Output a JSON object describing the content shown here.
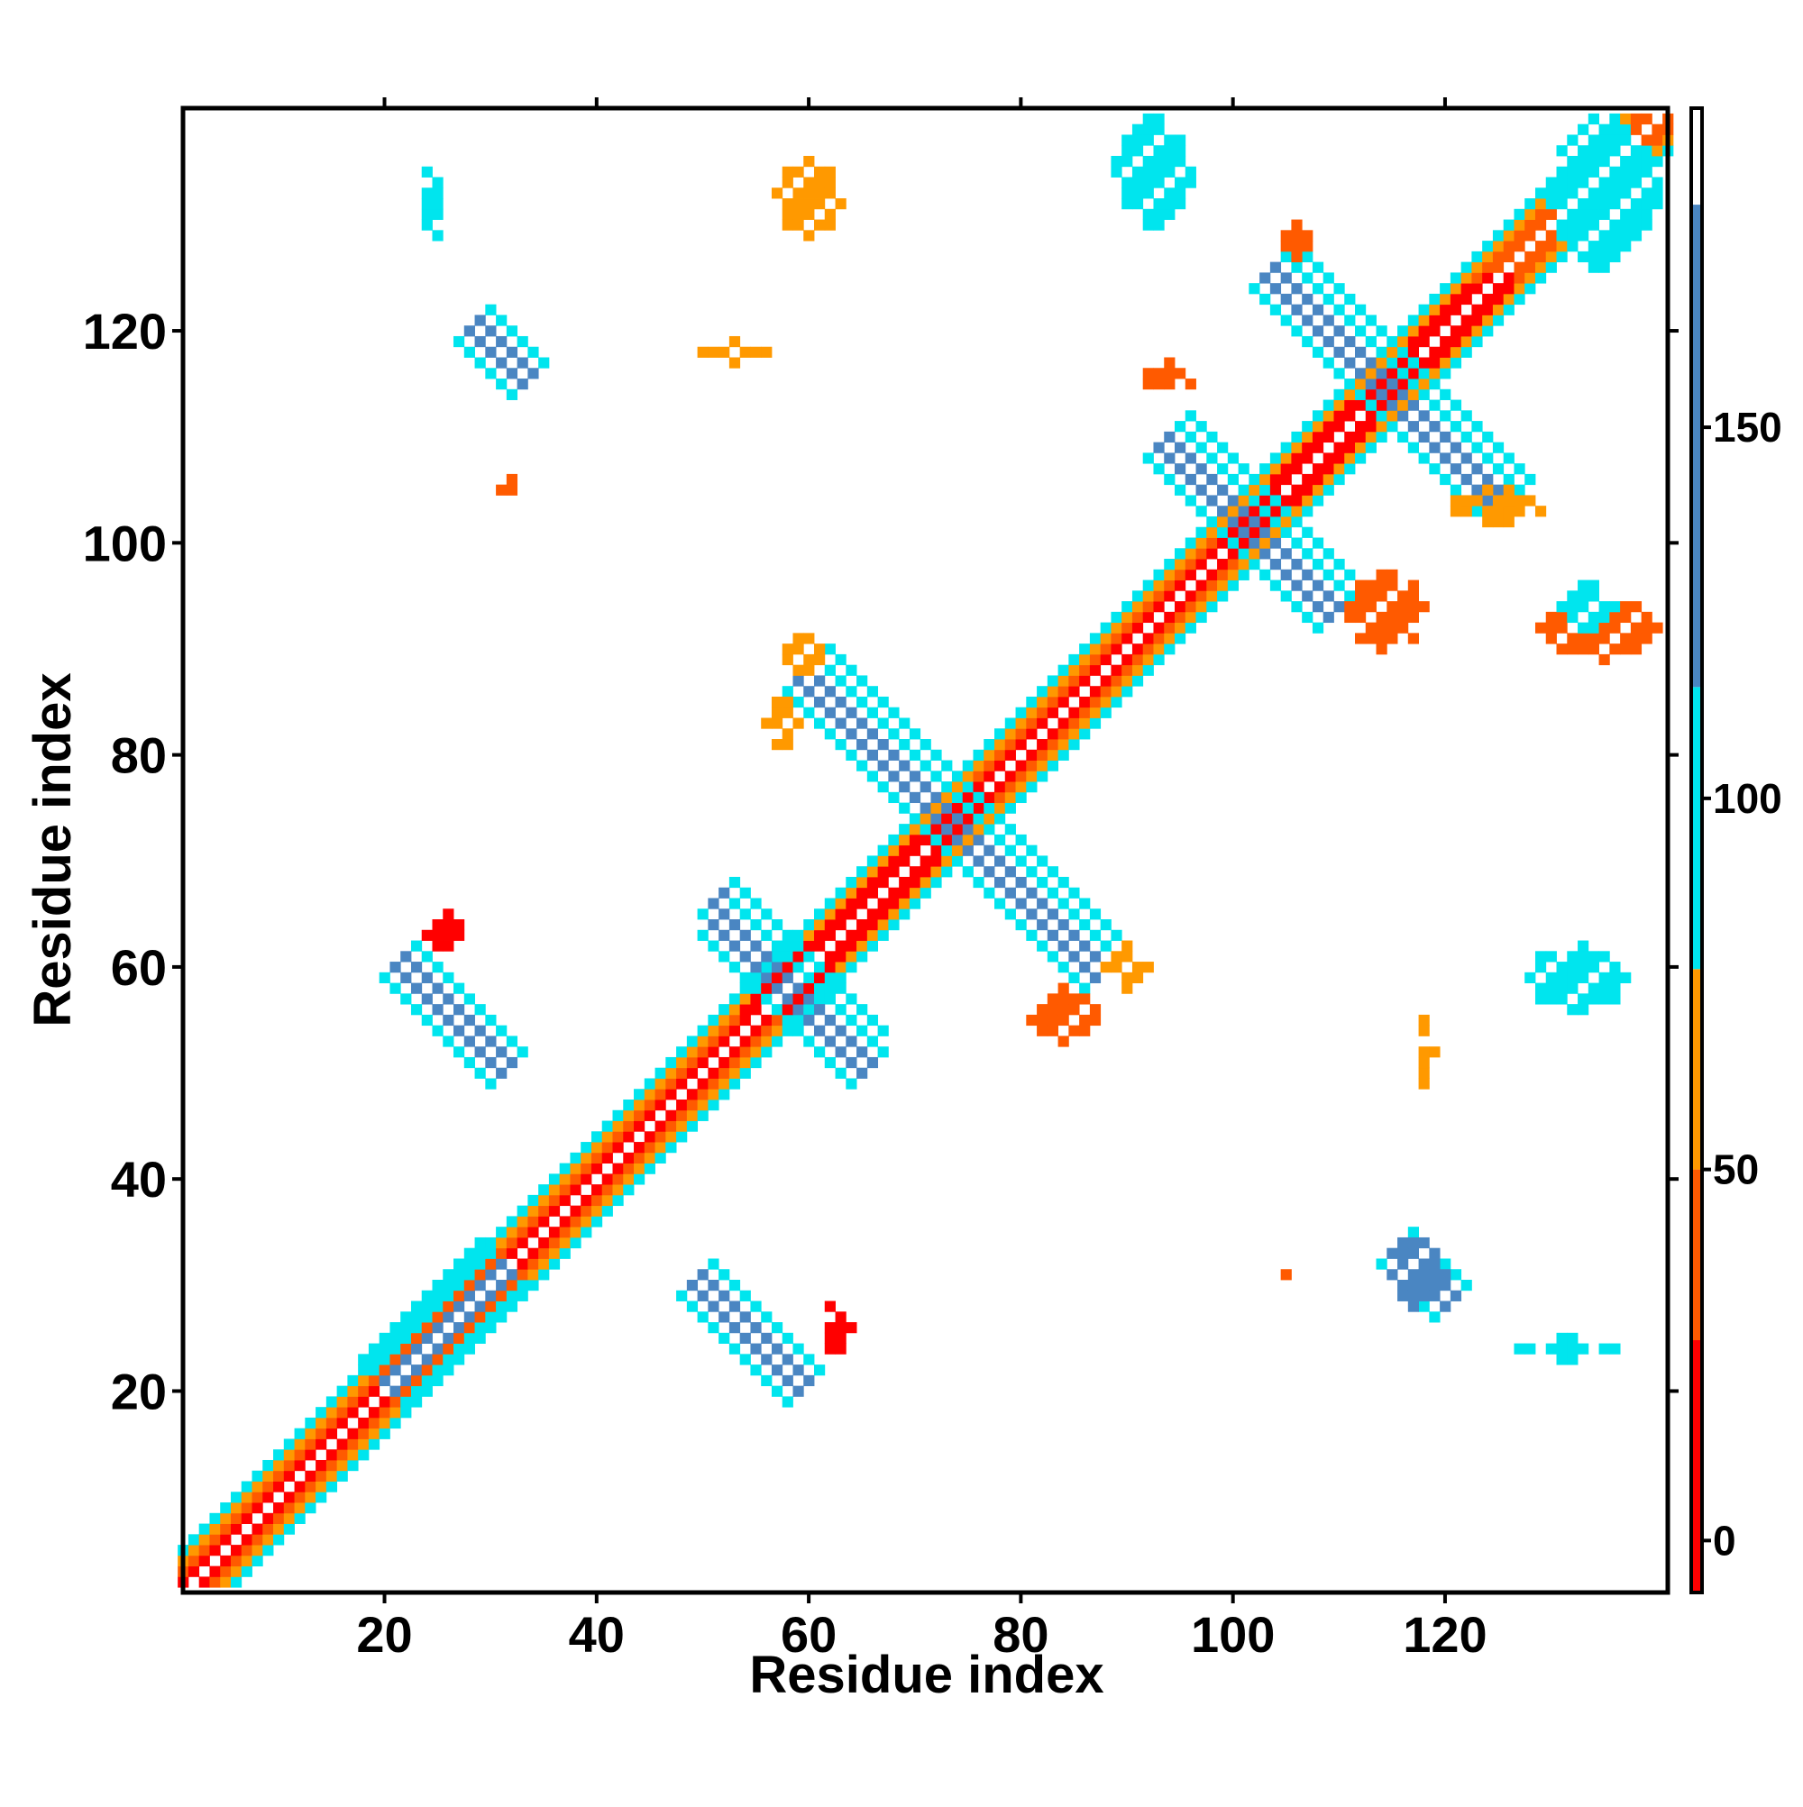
{
  "chart_data": {
    "type": "heatmap",
    "title": "",
    "xlabel": "Residue index",
    "ylabel": "Residue index",
    "xlim": [
      1,
      141
    ],
    "ylim": [
      1,
      141
    ],
    "x_ticks": [
      20,
      40,
      60,
      80,
      100,
      120
    ],
    "y_ticks": [
      20,
      40,
      60,
      80,
      100,
      120
    ],
    "colorbar": {
      "ticks": [
        0,
        50,
        100,
        150
      ],
      "range": [
        -7,
        193
      ],
      "bands": [
        {
          "from": -7,
          "to": 27,
          "color": "#ff0000"
        },
        {
          "from": 27,
          "to": 50,
          "color": "#ff5a00"
        },
        {
          "from": 50,
          "to": 77,
          "color": "#ff9900"
        },
        {
          "from": 77,
          "to": 115,
          "color": "#00e5ee"
        },
        {
          "from": 115,
          "to": 180,
          "color": "#4a86c2"
        },
        {
          "from": 180,
          "to": 193,
          "color": "#ffffff"
        }
      ]
    },
    "grid": false,
    "legend": "colorbar right",
    "colors": {
      "red": "#ff0000",
      "red_orange": "#ff5a00",
      "orange": "#ff9900",
      "cyan": "#00e5ee",
      "blue": "#4a86c2"
    },
    "features": [
      {
        "kind": "diagonal_band",
        "from": [
          2,
          2
        ],
        "to": [
          140,
          140
        ],
        "value": 40
      },
      {
        "kind": "strand_pair",
        "from": [
          20,
          21
        ],
        "to": [
          31,
          32
        ],
        "value": 150
      },
      {
        "kind": "strand_pair",
        "from": [
          21,
          20
        ],
        "to": [
          32,
          31
        ],
        "value": 150
      },
      {
        "kind": "strand_pair",
        "from": [
          21,
          60
        ],
        "to": [
          31,
          50
        ],
        "value": 150
      },
      {
        "kind": "strand_pair",
        "from": [
          60,
          21
        ],
        "to": [
          50,
          31
        ],
        "value": 150
      },
      {
        "kind": "strand_pair",
        "from": [
          51,
          66
        ],
        "to": [
          65,
          52
        ],
        "value": 150
      },
      {
        "kind": "strand_pair",
        "from": [
          66,
          51
        ],
        "to": [
          52,
          65
        ],
        "value": 150
      },
      {
        "kind": "strand_pair",
        "from": [
          60,
          88
        ],
        "to": [
          88,
          60
        ],
        "value": 150
      },
      {
        "kind": "strand_pair",
        "from": [
          88,
          60
        ],
        "to": [
          60,
          88
        ],
        "value": 150
      },
      {
        "kind": "strand_pair",
        "from": [
          94,
          110
        ],
        "to": [
          110,
          94
        ],
        "value": 150
      },
      {
        "kind": "strand_pair",
        "from": [
          110,
          94
        ],
        "to": [
          94,
          110
        ],
        "value": 150
      },
      {
        "kind": "strand_pair",
        "from": [
          104,
          126
        ],
        "to": [
          126,
          104
        ],
        "value": 150
      },
      {
        "kind": "strand_pair",
        "from": [
          126,
          104
        ],
        "to": [
          104,
          126
        ],
        "value": 150
      },
      {
        "kind": "strand_pair",
        "from": [
          28,
          120
        ],
        "to": [
          33,
          115
        ],
        "value": 150
      },
      {
        "kind": "strand_pair",
        "from": [
          115,
          33
        ],
        "to": [
          120,
          28
        ],
        "value": 150
      },
      {
        "kind": "cluster",
        "from": [
          130,
          126
        ],
        "to": [
          140,
          140
        ],
        "value": 110
      },
      {
        "kind": "cluster",
        "from": [
          24,
          128
        ],
        "to": [
          25,
          136
        ],
        "value": 100
      },
      {
        "kind": "cluster",
        "from": [
          57,
          129
        ],
        "to": [
          63,
          136
        ],
        "value": 70
      },
      {
        "kind": "cluster",
        "from": [
          89,
          130
        ],
        "to": [
          96,
          140
        ],
        "value": 80
      },
      {
        "kind": "cluster",
        "from": [
          105,
          126
        ],
        "to": [
          107,
          131
        ],
        "value": 40
      },
      {
        "kind": "cluster",
        "from": [
          50,
          117
        ],
        "to": [
          56,
          119
        ],
        "value": 60
      },
      {
        "kind": "cluster",
        "from": [
          91,
          114
        ],
        "to": [
          97,
          117
        ],
        "value": 40
      },
      {
        "kind": "cluster",
        "from": [
          31,
          105
        ],
        "to": [
          32,
          106
        ],
        "value": 40
      },
      {
        "kind": "cluster",
        "from": [
          56,
          80
        ],
        "to": [
          59,
          86
        ],
        "value": 50
      },
      {
        "kind": "cluster",
        "from": [
          57,
          88
        ],
        "to": [
          62,
          91
        ],
        "value": 50
      },
      {
        "kind": "cluster",
        "from": [
          24,
          61
        ],
        "to": [
          28,
          65
        ],
        "value": 20
      },
      {
        "kind": "cluster",
        "from": [
          81,
          53
        ],
        "to": [
          87,
          58
        ],
        "value": 30
      },
      {
        "kind": "cluster",
        "from": [
          88,
          58
        ],
        "to": [
          92,
          62
        ],
        "value": 60
      },
      {
        "kind": "cluster",
        "from": [
          61,
          23
        ],
        "to": [
          64,
          29
        ],
        "value": 20
      },
      {
        "kind": "cluster",
        "from": [
          105,
          30
        ],
        "to": [
          106,
          32
        ],
        "value": 40
      },
      {
        "kind": "cluster",
        "from": [
          115,
          28
        ],
        "to": [
          120,
          34
        ],
        "value": 150
      },
      {
        "kind": "cluster",
        "from": [
          127,
          23
        ],
        "to": [
          136,
          25
        ],
        "value": 100
      },
      {
        "kind": "cluster",
        "from": [
          117,
          49
        ],
        "to": [
          119,
          55
        ],
        "value": 60
      },
      {
        "kind": "cluster",
        "from": [
          128,
          56
        ],
        "to": [
          137,
          62
        ],
        "value": 100
      },
      {
        "kind": "cluster",
        "from": [
          111,
          90
        ],
        "to": [
          118,
          97
        ],
        "value": 40
      },
      {
        "kind": "cluster",
        "from": [
          129,
          89
        ],
        "to": [
          140,
          95
        ],
        "value": 40
      },
      {
        "kind": "cluster",
        "from": [
          131,
          92
        ],
        "to": [
          136,
          96
        ],
        "value": 100
      },
      {
        "kind": "cluster",
        "from": [
          120,
          102
        ],
        "to": [
          130,
          105
        ],
        "value": 60
      }
    ]
  }
}
